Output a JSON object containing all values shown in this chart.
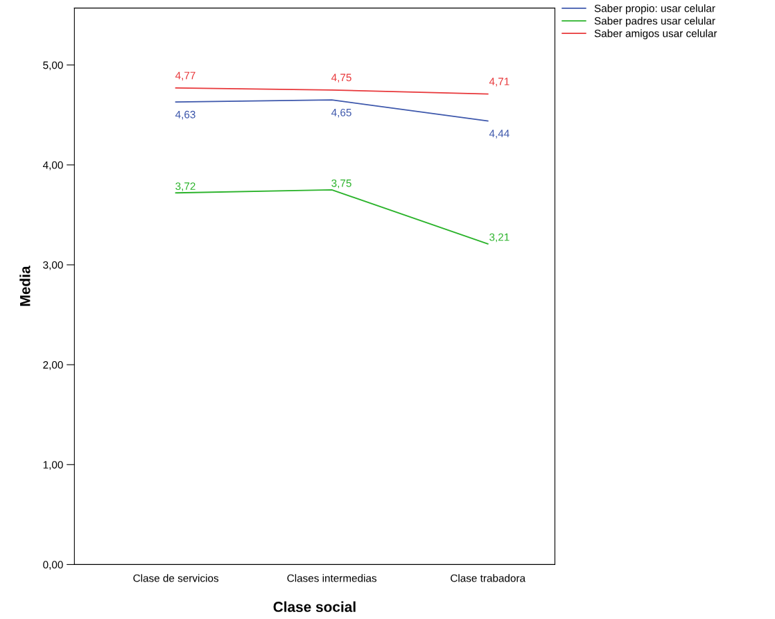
{
  "chart_data": {
    "type": "line",
    "xlabel": "Clase social",
    "ylabel": "Media",
    "categories": [
      "Clase de servicios",
      "Clases intermedias",
      "Clase trabadora"
    ],
    "series": [
      {
        "name": "Saber propio: usar celular",
        "color": "#3e58ac",
        "values": [
          4.63,
          4.65,
          4.44
        ],
        "value_labels": [
          "4,63",
          "4,65",
          "4,44"
        ]
      },
      {
        "name": "Saber padres usar celular",
        "color": "#2bb32b",
        "values": [
          3.72,
          3.75,
          3.21
        ],
        "value_labels": [
          "3,72",
          "3,75",
          "3,21"
        ]
      },
      {
        "name": "Saber amigos usar celular",
        "color": "#e8383b",
        "values": [
          4.77,
          4.75,
          4.71
        ],
        "value_labels": [
          "4,77",
          "4,75",
          "4,71"
        ]
      }
    ],
    "ylim": [
      0,
      5.57
    ],
    "yticks": [
      {
        "value": 0,
        "label": "0,00"
      },
      {
        "value": 1,
        "label": "1,00"
      },
      {
        "value": 2,
        "label": "2,00"
      },
      {
        "value": 3,
        "label": "3,00"
      },
      {
        "value": 4,
        "label": "4,00"
      },
      {
        "value": 5,
        "label": "5,00"
      }
    ],
    "grid": false,
    "legend": "top right",
    "marker": "none",
    "line_style": "solid"
  }
}
